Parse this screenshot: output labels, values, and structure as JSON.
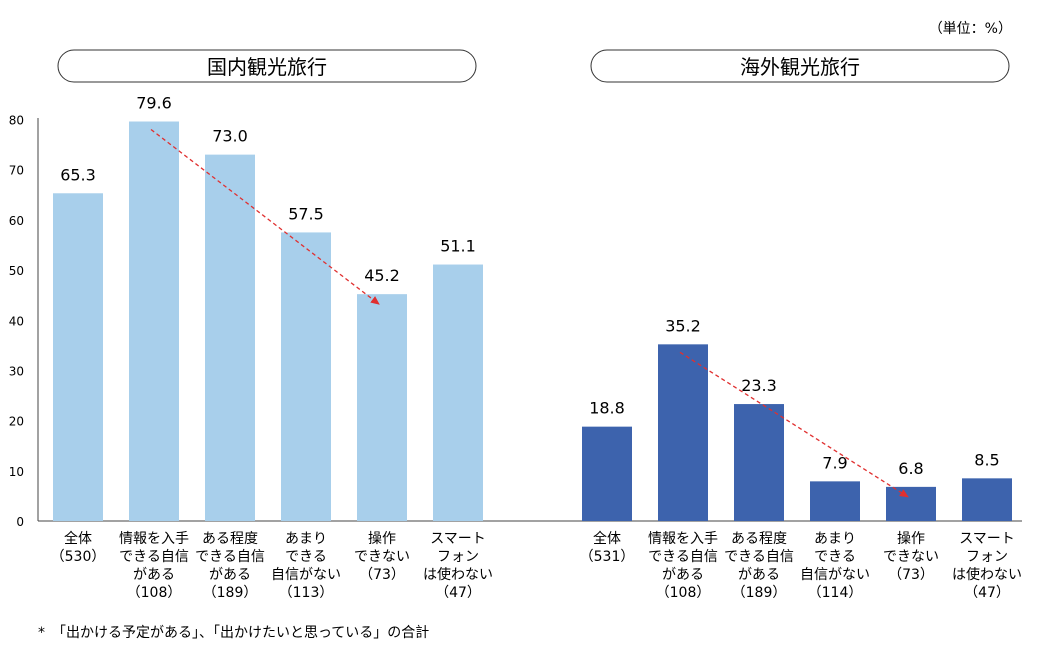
{
  "unit_note": "（単位：%）",
  "footnote": "*　「出かける予定がある」、「出かけたいと思っている」の合計",
  "colors": {
    "domestic": "#a8cfeb",
    "overseas": "#3d63ad",
    "trend": "#e03030",
    "axis": "#444444",
    "grid": "#d9d9d9"
  },
  "chart_data": [
    {
      "type": "bar",
      "title": "国内観光旅行",
      "categories": [
        [
          "全体",
          "（530）"
        ],
        [
          "情報を入手",
          "できる自信",
          "がある",
          "（108）"
        ],
        [
          "ある程度",
          "できる自信",
          "がある",
          "（189）"
        ],
        [
          "あまり",
          "できる",
          "自信がない",
          "（113）"
        ],
        [
          "操作",
          "できない",
          "（73）"
        ],
        [
          "スマート",
          "フォン",
          "は使わない",
          "（47）"
        ]
      ],
      "values": [
        65.3,
        79.6,
        73.0,
        57.5,
        45.2,
        51.1
      ],
      "value_labels": [
        "65.3",
        "79.6",
        "73.0",
        "57.5",
        "45.2",
        "51.1"
      ],
      "ylim": [
        0,
        80
      ],
      "yticks": [
        "0",
        "10",
        "20",
        "30",
        "40",
        "50",
        "60",
        "70",
        "80"
      ],
      "grid": false,
      "trend_arrow": {
        "from_index": 1,
        "to_index": 4
      }
    },
    {
      "type": "bar",
      "title": "海外観光旅行",
      "categories": [
        [
          "全体",
          "（531）"
        ],
        [
          "情報を入手",
          "できる自信",
          "がある",
          "（108）"
        ],
        [
          "ある程度",
          "できる自信",
          "がある",
          "（189）"
        ],
        [
          "あまり",
          "できる",
          "自信がない",
          "（114）"
        ],
        [
          "操作",
          "できない",
          "（73）"
        ],
        [
          "スマート",
          "フォン",
          "は使わない",
          "（47）"
        ]
      ],
      "values": [
        18.8,
        35.2,
        23.3,
        7.9,
        6.8,
        8.5
      ],
      "value_labels": [
        "18.8",
        "35.2",
        "23.3",
        "7.9",
        "6.8",
        "8.5"
      ],
      "ylim": [
        0,
        80
      ],
      "trend_arrow": {
        "from_index": 1,
        "to_index": 4
      }
    }
  ]
}
